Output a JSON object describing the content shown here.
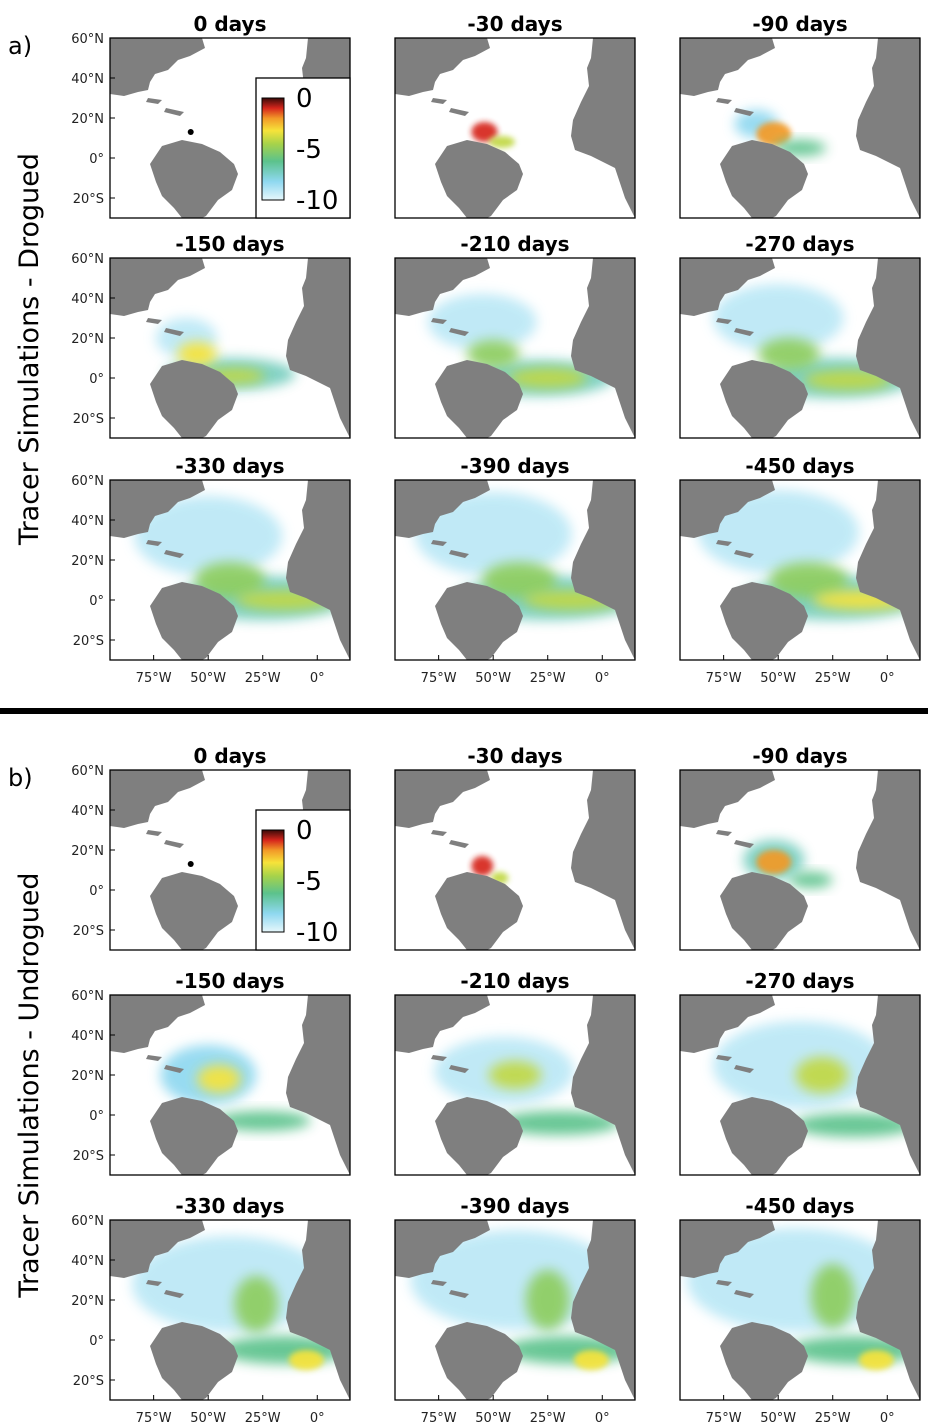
{
  "chart_data": {
    "type": "heatmap",
    "colorbar": {
      "ticks": [
        "0",
        "-5",
        "-10"
      ],
      "range": [
        -10,
        0
      ]
    },
    "axis_ticks": {
      "y": [
        "60°N",
        "40°N",
        "20°N",
        "0°",
        "20°S"
      ],
      "x": [
        "75°W",
        "50°W",
        "25°W",
        "0°"
      ]
    },
    "release_point": {
      "lon": -58,
      "lat": 13
    },
    "sections": [
      {
        "label": "a)",
        "ylabel": "Tracer Simulations - Drogued",
        "panels": [
          {
            "title": "0 days",
            "blobs": []
          },
          {
            "title": "-30 days",
            "blobs": [
              {
                "lon": -54,
                "lat": 13,
                "rx": 6,
                "ry": 5,
                "v": -1
              },
              {
                "lon": -46,
                "lat": 8,
                "rx": 6,
                "ry": 3,
                "v": -4
              }
            ]
          },
          {
            "title": "-90 days",
            "blobs": [
              {
                "lon": -60,
                "lat": 17,
                "rx": 10,
                "ry": 7,
                "v": -8
              },
              {
                "lon": -52,
                "lat": 12,
                "rx": 8,
                "ry": 6,
                "v": -2
              },
              {
                "lon": -40,
                "lat": 5,
                "rx": 12,
                "ry": 4,
                "v": -6
              }
            ]
          },
          {
            "title": "-150 days",
            "blobs": [
              {
                "lon": -60,
                "lat": 20,
                "rx": 14,
                "ry": 10,
                "v": -9
              },
              {
                "lon": -40,
                "lat": 2,
                "rx": 30,
                "ry": 8,
                "v": -7
              },
              {
                "lon": -55,
                "lat": 12,
                "rx": 9,
                "ry": 6,
                "v": -3
              },
              {
                "lon": -38,
                "lat": 1,
                "rx": 14,
                "ry": 4,
                "v": -4
              }
            ]
          },
          {
            "title": "-210 days",
            "blobs": [
              {
                "lon": -55,
                "lat": 28,
                "rx": 25,
                "ry": 14,
                "v": -9
              },
              {
                "lon": -30,
                "lat": 0,
                "rx": 35,
                "ry": 9,
                "v": -7
              },
              {
                "lon": -50,
                "lat": 12,
                "rx": 12,
                "ry": 7,
                "v": -5
              },
              {
                "lon": -25,
                "lat": 0,
                "rx": 18,
                "ry": 5,
                "v": -4
              }
            ]
          },
          {
            "title": "-270 days",
            "blobs": [
              {
                "lon": -50,
                "lat": 30,
                "rx": 30,
                "ry": 17,
                "v": -9
              },
              {
                "lon": -25,
                "lat": 0,
                "rx": 38,
                "ry": 10,
                "v": -7
              },
              {
                "lon": -45,
                "lat": 12,
                "rx": 14,
                "ry": 8,
                "v": -5
              },
              {
                "lon": -18,
                "lat": -1,
                "rx": 20,
                "ry": 5,
                "v": -4
              }
            ]
          },
          {
            "title": "-330 days",
            "blobs": [
              {
                "lon": -50,
                "lat": 32,
                "rx": 34,
                "ry": 20,
                "v": -9
              },
              {
                "lon": -25,
                "lat": 1,
                "rx": 40,
                "ry": 11,
                "v": -7
              },
              {
                "lon": -40,
                "lat": 10,
                "rx": 16,
                "ry": 9,
                "v": -5
              },
              {
                "lon": -15,
                "lat": 0,
                "rx": 22,
                "ry": 5,
                "v": -4
              }
            ]
          },
          {
            "title": "-390 days",
            "blobs": [
              {
                "lon": -50,
                "lat": 33,
                "rx": 36,
                "ry": 21,
                "v": -9
              },
              {
                "lon": -25,
                "lat": 1,
                "rx": 42,
                "ry": 11,
                "v": -7
              },
              {
                "lon": -38,
                "lat": 10,
                "rx": 17,
                "ry": 9,
                "v": -5
              },
              {
                "lon": -14,
                "lat": 0,
                "rx": 22,
                "ry": 5,
                "v": -4
              }
            ]
          },
          {
            "title": "-450 days",
            "blobs": [
              {
                "lon": -50,
                "lat": 34,
                "rx": 37,
                "ry": 21,
                "v": -9
              },
              {
                "lon": -25,
                "lat": 1,
                "rx": 42,
                "ry": 11,
                "v": -7
              },
              {
                "lon": -36,
                "lat": 10,
                "rx": 18,
                "ry": 9,
                "v": -5
              },
              {
                "lon": -12,
                "lat": 0,
                "rx": 22,
                "ry": 5,
                "v": -3
              }
            ]
          }
        ]
      },
      {
        "label": "b)",
        "ylabel": "Tracer Simulations - Undrogued",
        "panels": [
          {
            "title": "0 days",
            "blobs": []
          },
          {
            "title": "-30 days",
            "blobs": [
              {
                "lon": -55,
                "lat": 12,
                "rx": 5,
                "ry": 5,
                "v": -1
              },
              {
                "lon": -47,
                "lat": 6,
                "rx": 4,
                "ry": 3,
                "v": -4
              }
            ]
          },
          {
            "title": "-90 days",
            "blobs": [
              {
                "lon": -52,
                "lat": 15,
                "rx": 14,
                "ry": 10,
                "v": -7
              },
              {
                "lon": -52,
                "lat": 14,
                "rx": 8,
                "ry": 6,
                "v": -2
              },
              {
                "lon": -35,
                "lat": 5,
                "rx": 10,
                "ry": 4,
                "v": -6
              }
            ]
          },
          {
            "title": "-150 days",
            "blobs": [
              {
                "lon": -50,
                "lat": 20,
                "rx": 22,
                "ry": 15,
                "v": -8
              },
              {
                "lon": -45,
                "lat": 18,
                "rx": 10,
                "ry": 7,
                "v": -3
              },
              {
                "lon": -25,
                "lat": -3,
                "rx": 22,
                "ry": 5,
                "v": -6
              }
            ]
          },
          {
            "title": "-210 days",
            "blobs": [
              {
                "lon": -45,
                "lat": 22,
                "rx": 32,
                "ry": 17,
                "v": -9
              },
              {
                "lon": -40,
                "lat": 20,
                "rx": 12,
                "ry": 7,
                "v": -4
              },
              {
                "lon": -20,
                "lat": -4,
                "rx": 28,
                "ry": 6,
                "v": -6
              }
            ]
          },
          {
            "title": "-270 days",
            "blobs": [
              {
                "lon": -40,
                "lat": 25,
                "rx": 40,
                "ry": 22,
                "v": -9
              },
              {
                "lon": -30,
                "lat": 20,
                "rx": 12,
                "ry": 9,
                "v": -4
              },
              {
                "lon": -15,
                "lat": -5,
                "rx": 28,
                "ry": 6,
                "v": -6
              }
            ]
          },
          {
            "title": "-330 days",
            "blobs": [
              {
                "lon": -40,
                "lat": 28,
                "rx": 45,
                "ry": 24,
                "v": -9
              },
              {
                "lon": -28,
                "lat": 18,
                "rx": 10,
                "ry": 14,
                "v": -5
              },
              {
                "lon": -15,
                "lat": -5,
                "rx": 30,
                "ry": 7,
                "v": -6
              },
              {
                "lon": -5,
                "lat": -10,
                "rx": 8,
                "ry": 5,
                "v": -3
              }
            ]
          },
          {
            "title": "-390 days",
            "blobs": [
              {
                "lon": -40,
                "lat": 30,
                "rx": 48,
                "ry": 25,
                "v": -9
              },
              {
                "lon": -25,
                "lat": 20,
                "rx": 10,
                "ry": 15,
                "v": -5
              },
              {
                "lon": -15,
                "lat": -5,
                "rx": 30,
                "ry": 7,
                "v": -6
              },
              {
                "lon": -5,
                "lat": -10,
                "rx": 8,
                "ry": 5,
                "v": -3
              }
            ]
          },
          {
            "title": "-450 days",
            "blobs": [
              {
                "lon": -42,
                "lat": 30,
                "rx": 50,
                "ry": 26,
                "v": -9
              },
              {
                "lon": -25,
                "lat": 22,
                "rx": 10,
                "ry": 16,
                "v": -5
              },
              {
                "lon": -15,
                "lat": -5,
                "rx": 30,
                "ry": 7,
                "v": -6
              },
              {
                "lon": -5,
                "lat": -10,
                "rx": 8,
                "ry": 5,
                "v": -3
              }
            ]
          }
        ]
      }
    ]
  }
}
